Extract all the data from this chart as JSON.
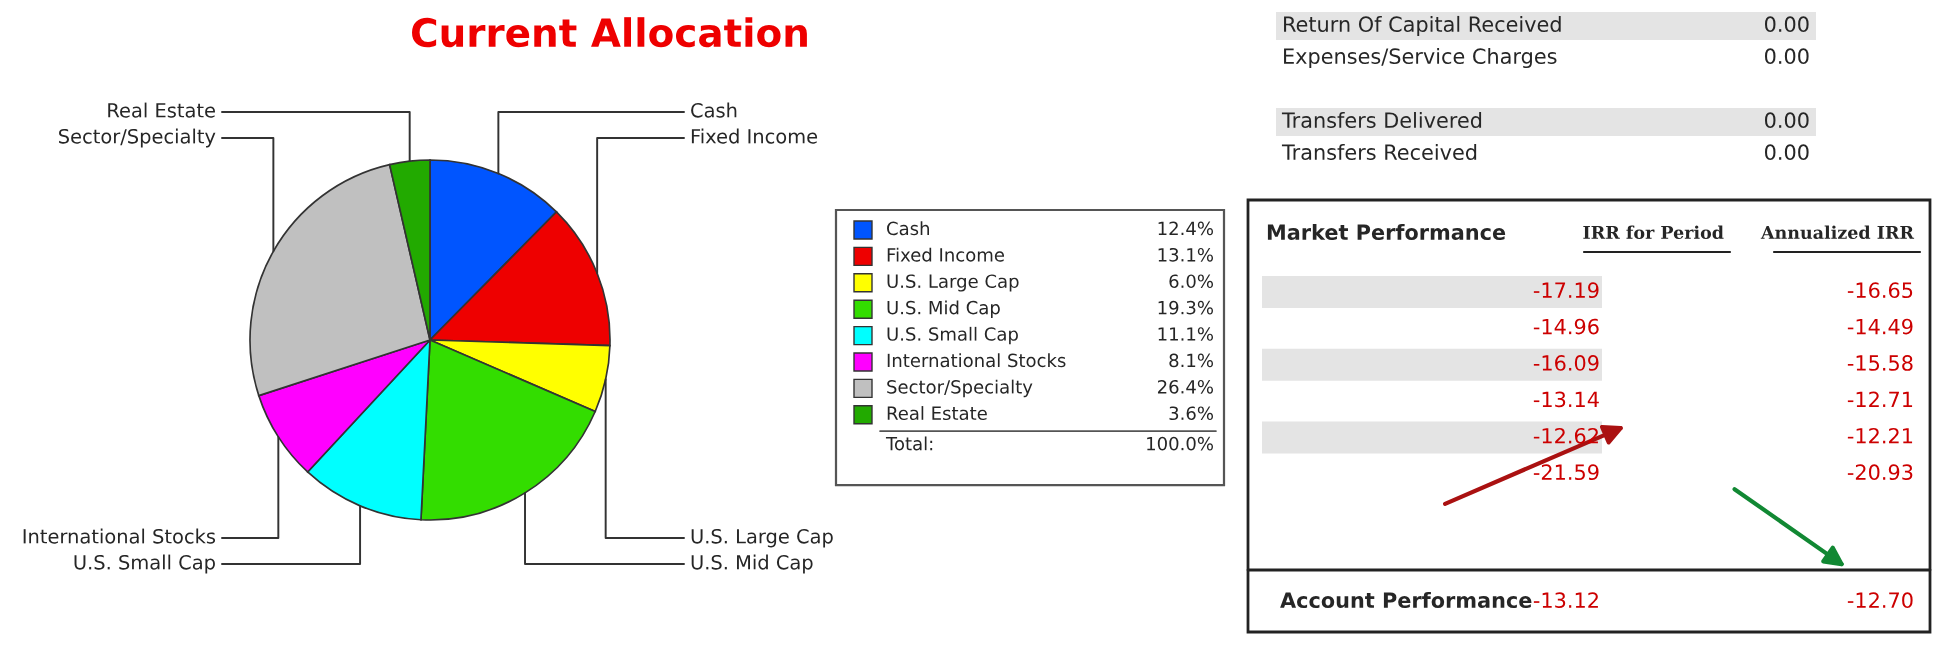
{
  "chart_data": [
    {
      "type": "pie",
      "title": "Current Allocation",
      "categories": [
        "Cash",
        "Fixed Income",
        "U.S. Large Cap",
        "U.S. Mid Cap",
        "U.S. Small Cap",
        "International Stocks",
        "Sector/Specialty",
        "Real Estate"
      ],
      "values": [
        12.4,
        13.1,
        6.0,
        19.3,
        11.1,
        8.1,
        26.4,
        3.6
      ],
      "colors": [
        "#0055ff",
        "#ee0000",
        "#ffff00",
        "#33dd00",
        "#00ffff",
        "#ff00ff",
        "#c0c0c0",
        "#22aa00"
      ],
      "value_labels": [
        "12.4%",
        "13.1%",
        "6.0%",
        "19.3%",
        "11.1%",
        "8.1%",
        "26.4%",
        "3.6%"
      ],
      "annotations": [
        "Total:",
        "100.0%"
      ],
      "legend": "right"
    },
    {
      "type": "other",
      "annotations": [
        "Return Of Capital Received",
        "0.00",
        "Expenses/Service Charges",
        "0.00",
        "Transfers Delivered",
        "0.00",
        "Transfers Received",
        "0.00"
      ]
    },
    {
      "type": "other",
      "title": "Market Performance",
      "annotations": [
        "IRR for Period",
        "Annualized IRR",
        "-17.19",
        "-16.65",
        "-14.96",
        "-14.49",
        "-16.09",
        "-15.58",
        "-13.14",
        "-12.71",
        "-12.62",
        "-12.21",
        "-21.59",
        "-20.93",
        "Account Performance",
        "-13.12",
        "-12.70"
      ]
    }
  ]
}
